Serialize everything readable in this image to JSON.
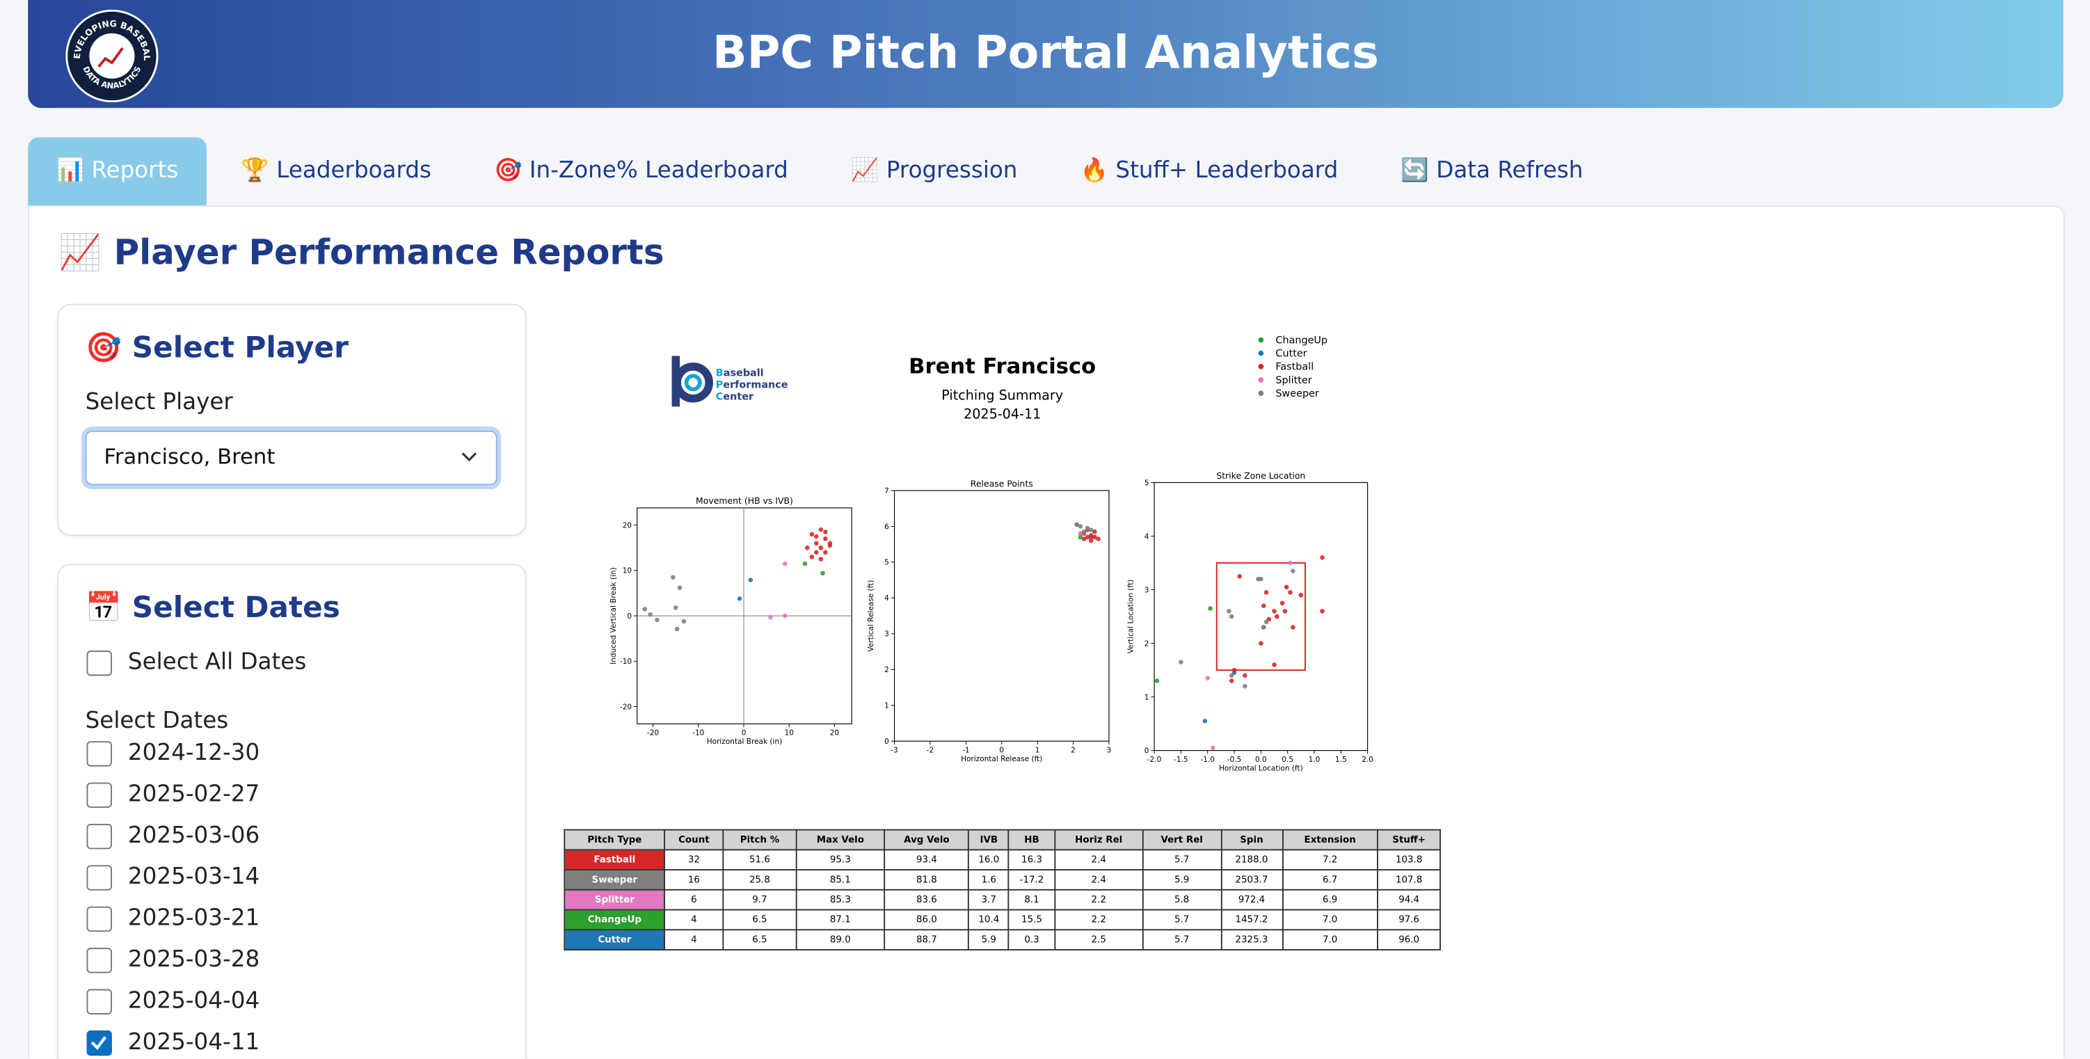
{
  "header": {
    "title": "BPC Pitch Portal Analytics",
    "logo_top": "DEVELOPING BASEBALL",
    "logo_bottom": "DATA ANALYTICS"
  },
  "tabs": {
    "items": [
      "📊 Reports",
      "🏆 Leaderboards",
      "🎯 In-Zone% Leaderboard",
      "📈 Progression",
      "🔥 Stuff+ Leaderboard",
      "🔄 Data Refresh"
    ],
    "active": 0
  },
  "page_title": "📈 Player Performance Reports",
  "select_player": {
    "heading": "🎯 Select Player",
    "label": "Select Player",
    "value": "Francisco, Brent"
  },
  "select_dates": {
    "heading": "📅 Select Dates",
    "select_all": {
      "label": "Select All Dates",
      "checked": false
    },
    "label": "Select Dates",
    "dates": [
      {
        "label": "2024-12-30",
        "checked": false
      },
      {
        "label": "2025-02-27",
        "checked": false
      },
      {
        "label": "2025-03-06",
        "checked": false
      },
      {
        "label": "2025-03-14",
        "checked": false
      },
      {
        "label": "2025-03-21",
        "checked": false
      },
      {
        "label": "2025-03-28",
        "checked": false
      },
      {
        "label": "2025-04-04",
        "checked": false
      },
      {
        "label": "2025-04-11",
        "checked": true
      }
    ]
  },
  "report": {
    "logo_lines": [
      "Baseball",
      "Performance",
      "Center"
    ],
    "player": "Brent Francisco",
    "subtitle": "Pitching Summary",
    "date": "2025-04-11",
    "pitch_types": [
      {
        "name": "ChangeUp",
        "color": "#2ca02c"
      },
      {
        "name": "Cutter",
        "color": "#1f77b4"
      },
      {
        "name": "Fastball",
        "color": "#d62728"
      },
      {
        "name": "Splitter",
        "color": "#e377c2"
      },
      {
        "name": "Sweeper",
        "color": "#7f7f7f"
      }
    ],
    "charts": [
      {
        "type": "scatter",
        "title": "Movement (HB vs IVB)",
        "xlabel": "Horizontal Break (in)",
        "ylabel": "Induced Vertical Break (in)",
        "xlim": [
          -23.5,
          23.8
        ],
        "ylim": [
          -23.8,
          23.8
        ],
        "xticks": [
          -20,
          -10,
          0,
          10,
          20
        ],
        "yticks": [
          -20,
          -10,
          0,
          10,
          20
        ],
        "zero_lines": true,
        "series": [
          {
            "x": [
              13.5,
              17.4
            ],
            "y": [
              11.5,
              9.4
            ]
          },
          {
            "x": [
              1.5,
              -0.9
            ],
            "y": [
              7.9,
              3.8
            ]
          },
          {
            "x": [
              15,
              17,
              18,
              16,
              14,
              17,
              19,
              16,
              18,
              15,
              17,
              19,
              16,
              18
            ],
            "y": [
              18,
              19,
              17,
              16,
              15,
              15,
              16,
              14,
              14,
              13,
              12.5,
              15.5,
              17.5,
              18.5
            ]
          },
          {
            "x": [
              9.1,
              5.9,
              9.1
            ],
            "y": [
              11.5,
              -0.3,
              0
            ]
          },
          {
            "x": [
              -15.6,
              -14.1,
              -21.8,
              -20.6,
              -19.1,
              -15,
              -14.7,
              -13.2
            ],
            "y": [
              8.5,
              6.2,
              1.5,
              0.3,
              -0.9,
              1.8,
              -2.9,
              -1.2
            ]
          }
        ]
      },
      {
        "type": "scatter",
        "title": "Release Points",
        "xlabel": "Horizontal Release (ft)",
        "ylabel": "Vertical Release (ft)",
        "xlim": [
          -3,
          3
        ],
        "ylim": [
          0,
          7
        ],
        "xticks": [
          -3,
          -2,
          -1,
          0,
          1,
          2,
          3
        ],
        "yticks": [
          0,
          1,
          2,
          3,
          4,
          5,
          6,
          7
        ],
        "zero_lines": false,
        "series": [
          {
            "x": [
              2.2
            ],
            "y": [
              5.7
            ]
          },
          {
            "x": [
              2.1,
              2.5
            ],
            "y": [
              6.05,
              5.7
            ]
          },
          {
            "x": [
              2.3,
              2.4,
              2.5,
              2.6,
              2.7,
              2.4,
              2.2,
              2.5,
              2.6,
              2.3
            ],
            "y": [
              5.8,
              5.7,
              5.75,
              5.7,
              5.65,
              5.9,
              5.8,
              5.6,
              5.85,
              5.65
            ]
          },
          {
            "x": [
              2.2
            ],
            "y": [
              5.8
            ]
          },
          {
            "x": [
              2.1,
              2.2,
              2.4,
              2.5,
              2.3
            ],
            "y": [
              6.05,
              6.0,
              5.95,
              5.9,
              5.85
            ]
          }
        ]
      },
      {
        "type": "scatter",
        "title": "Strike Zone Location",
        "xlabel": "Horizontal Location (ft)",
        "ylabel": "Vertical Location (ft)",
        "xlim": [
          -2,
          2
        ],
        "ylim": [
          0,
          5
        ],
        "xticks": [
          {
            "value": -2,
            "label": "-2.0"
          },
          {
            "value": -1.5,
            "label": "-1.5"
          },
          {
            "value": -1,
            "label": "-1.0"
          },
          {
            "value": -0.5,
            "label": "-0.5"
          },
          {
            "value": 0,
            "label": "0.0"
          },
          {
            "value": 0.5,
            "label": "0.5"
          },
          {
            "value": 1,
            "label": "1.0"
          },
          {
            "value": 1.5,
            "label": "1.5"
          },
          {
            "value": 2,
            "label": "2.0"
          }
        ],
        "yticks": [
          0,
          1,
          2,
          3,
          4,
          5
        ],
        "zero_lines": false,
        "zone": {
          "x": [
            -0.83,
            0.83
          ],
          "y": [
            1.5,
            3.5
          ]
        },
        "series": [
          {
            "x": [
              -0.95,
              -1.95
            ],
            "y": [
              2.65,
              1.3
            ]
          },
          {
            "x": [
              -1.05,
              -0.5
            ],
            "y": [
              0.55,
              1.45
            ]
          },
          {
            "x": [
              -0.4,
              0.48,
              1.15,
              0.1,
              0.4,
              0.55,
              0.25,
              0.45,
              0.05,
              0.15,
              0.3,
              0.0,
              0.75,
              1.15,
              0.25,
              -0.3,
              -0.55,
              -0.5,
              0.05,
              0.6
            ],
            "y": [
              3.25,
              3.05,
              3.6,
              2.95,
              2.75,
              2.95,
              2.6,
              2.6,
              2.3,
              2.45,
              2.5,
              2.0,
              2.9,
              2.6,
              1.6,
              1.4,
              1.3,
              1.5,
              2.7,
              2.3
            ]
          },
          {
            "x": [
              -1.0,
              -0.9,
              0.55
            ],
            "y": [
              1.35,
              0.05,
              3.5
            ]
          },
          {
            "x": [
              -0.05,
              0.0,
              0.6,
              -0.6,
              -0.55,
              0.1,
              0.05,
              -1.5,
              -0.3,
              -0.55
            ],
            "y": [
              3.2,
              3.2,
              3.35,
              2.6,
              2.5,
              2.4,
              2.3,
              1.65,
              1.2,
              1.4
            ]
          }
        ]
      }
    ],
    "table": {
      "columns": [
        "Pitch Type",
        "Count",
        "Pitch %",
        "Max Velo",
        "Avg Velo",
        "IVB",
        "HB",
        "Horiz Rel",
        "Vert Rel",
        "Spin",
        "Extension",
        "Stuff+"
      ],
      "rows": [
        [
          "Fastball",
          "32",
          "51.6",
          "95.3",
          "93.4",
          "16.0",
          "16.3",
          "2.4",
          "5.7",
          "2188.0",
          "7.2",
          "103.8"
        ],
        [
          "Sweeper",
          "16",
          "25.8",
          "85.1",
          "81.8",
          "1.6",
          "-17.2",
          "2.4",
          "5.9",
          "2503.7",
          "6.7",
          "107.8"
        ],
        [
          "Splitter",
          "6",
          "9.7",
          "85.3",
          "83.6",
          "3.7",
          "8.1",
          "2.2",
          "5.8",
          "972.4",
          "6.9",
          "94.4"
        ],
        [
          "ChangeUp",
          "4",
          "6.5",
          "87.1",
          "86.0",
          "10.4",
          "15.5",
          "2.2",
          "5.7",
          "1457.2",
          "7.0",
          "97.6"
        ],
        [
          "Cutter",
          "4",
          "6.5",
          "89.0",
          "88.7",
          "5.9",
          "0.3",
          "2.5",
          "5.7",
          "2325.3",
          "7.0",
          "96.0"
        ]
      ]
    }
  }
}
